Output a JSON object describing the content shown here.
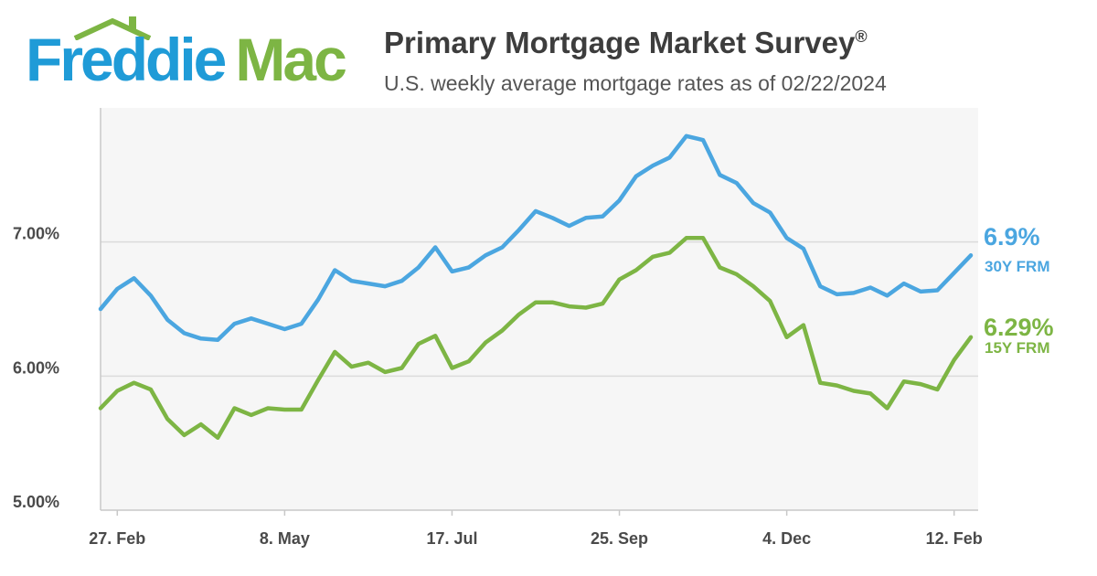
{
  "brand": {
    "name_part1": "Freddie",
    "name_part2": "Mac",
    "color_blue": "#1f9bd7",
    "color_green": "#7db544"
  },
  "header": {
    "title": "Primary Mortgage Market Survey",
    "title_mark": "®",
    "subtitle": "U.S. weekly average mortgage rates as of 02/22/2024"
  },
  "chart_data": {
    "type": "line",
    "title": "Primary Mortgage Market Survey®",
    "subtitle": "U.S. weekly average mortgage rates as of 02/22/2024",
    "xlabel": "",
    "ylabel": "",
    "ylim": [
      5.0,
      8.0
    ],
    "yticks": [
      "5.00%",
      "6.00%",
      "7.00%"
    ],
    "ytick_values": [
      5.0,
      6.0,
      7.0
    ],
    "xticks": [
      "27. Feb",
      "8. May",
      "17. Jul",
      "25. Sep",
      "4. Dec",
      "12. Feb"
    ],
    "xtick_indices": [
      1,
      11,
      21,
      31,
      41,
      51
    ],
    "grid": "horizontal",
    "x": [
      "2023-02-23",
      "2023-03-02",
      "2023-03-09",
      "2023-03-16",
      "2023-03-23",
      "2023-03-30",
      "2023-04-06",
      "2023-04-13",
      "2023-04-20",
      "2023-04-27",
      "2023-05-04",
      "2023-05-11",
      "2023-05-18",
      "2023-05-25",
      "2023-06-01",
      "2023-06-08",
      "2023-06-15",
      "2023-06-22",
      "2023-06-29",
      "2023-07-06",
      "2023-07-13",
      "2023-07-20",
      "2023-07-27",
      "2023-08-03",
      "2023-08-10",
      "2023-08-17",
      "2023-08-24",
      "2023-08-31",
      "2023-09-07",
      "2023-09-14",
      "2023-09-21",
      "2023-09-28",
      "2023-10-05",
      "2023-10-12",
      "2023-10-19",
      "2023-10-26",
      "2023-11-02",
      "2023-11-09",
      "2023-11-16",
      "2023-11-22",
      "2023-11-30",
      "2023-12-07",
      "2023-12-14",
      "2023-12-21",
      "2023-12-28",
      "2024-01-04",
      "2024-01-11",
      "2024-01-18",
      "2024-01-25",
      "2024-02-01",
      "2024-02-08",
      "2024-02-15",
      "2024-02-22"
    ],
    "series": [
      {
        "name": "30Y FRM",
        "color": "#4ba6e0",
        "end_value": "6.9%",
        "end_label": "30Y FRM",
        "values": [
          6.5,
          6.65,
          6.73,
          6.6,
          6.42,
          6.32,
          6.28,
          6.27,
          6.39,
          6.43,
          6.39,
          6.35,
          6.39,
          6.57,
          6.79,
          6.71,
          6.69,
          6.67,
          6.71,
          6.81,
          6.96,
          6.78,
          6.81,
          6.9,
          6.96,
          7.09,
          7.23,
          7.18,
          7.12,
          7.18,
          7.19,
          7.31,
          7.49,
          7.57,
          7.63,
          7.79,
          7.76,
          7.5,
          7.44,
          7.29,
          7.22,
          7.03,
          6.95,
          6.67,
          6.61,
          6.62,
          6.66,
          6.6,
          6.69,
          6.63,
          6.64,
          6.77,
          6.9
        ]
      },
      {
        "name": "15Y FRM",
        "color": "#7db544",
        "end_value": "6.29%",
        "end_label": "15Y FRM",
        "values": [
          5.76,
          5.89,
          5.95,
          5.9,
          5.68,
          5.56,
          5.64,
          5.54,
          5.76,
          5.71,
          5.76,
          5.75,
          5.75,
          5.97,
          6.18,
          6.07,
          6.1,
          6.03,
          6.06,
          6.24,
          6.3,
          6.06,
          6.11,
          6.25,
          6.34,
          6.46,
          6.55,
          6.55,
          6.52,
          6.51,
          6.54,
          6.72,
          6.79,
          6.89,
          6.92,
          7.03,
          7.03,
          6.81,
          6.76,
          6.67,
          6.56,
          6.29,
          6.38,
          5.95,
          5.93,
          5.89,
          5.87,
          5.76,
          5.96,
          5.94,
          5.9,
          6.12,
          6.29
        ]
      }
    ]
  }
}
